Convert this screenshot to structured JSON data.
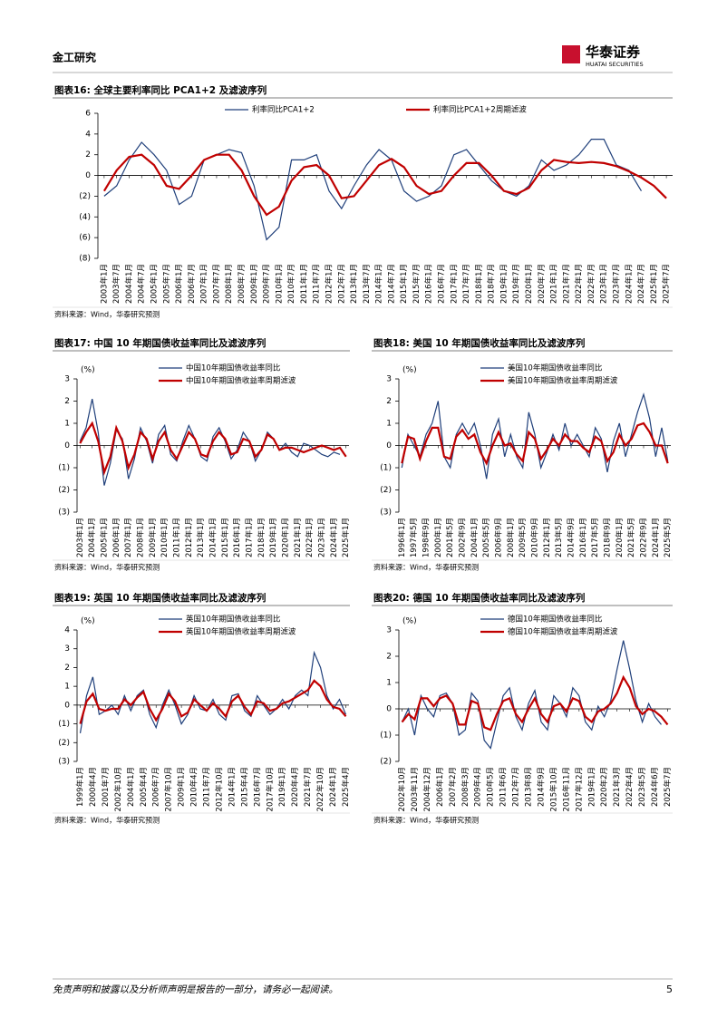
{
  "header": {
    "section": "金工研究",
    "logo_cn": "华泰证券",
    "logo_en": "HUATAI SECURITIES"
  },
  "chart_data": [
    {
      "type": "line",
      "title": "图表16:  全球主要利率同比 PCA1+2 及滤波序列",
      "source": "资料来源：Wind，华泰研究预测",
      "categories": [
        "2003年1月",
        "2003年7月",
        "2004年1月",
        "2004年7月",
        "2005年1月",
        "2005年7月",
        "2006年1月",
        "2006年7月",
        "2007年1月",
        "2007年7月",
        "2008年1月",
        "2008年7月",
        "2009年1月",
        "2009年7月",
        "2010年1月",
        "2010年7月",
        "2011年1月",
        "2011年7月",
        "2012年1月",
        "2012年7月",
        "2013年1月",
        "2013年7月",
        "2014年1月",
        "2014年7月",
        "2015年1月",
        "2015年7月",
        "2016年1月",
        "2016年7月",
        "2017年1月",
        "2017年7月",
        "2018年1月",
        "2018年7月",
        "2019年1月",
        "2019年7月",
        "2020年1月",
        "2020年7月",
        "2021年1月",
        "2021年7月",
        "2022年1月",
        "2022年7月",
        "2023年1月",
        "2023年7月",
        "2024年1月",
        "2024年7月",
        "2025年1月",
        "2025年7月"
      ],
      "series": [
        {
          "name": "利率同比PCA1+2",
          "color": "#1f3f7a",
          "values": [
            -2,
            -1,
            1.5,
            3.2,
            2,
            0.5,
            -2.8,
            -2,
            1.5,
            2,
            2.5,
            2.2,
            -1,
            -6.2,
            -5,
            1.5,
            1.5,
            2,
            -1.5,
            -3.2,
            -1,
            1,
            2.5,
            1.5,
            -1.5,
            -2.5,
            -2,
            -1,
            2,
            2.5,
            1,
            -0.5,
            -1.5,
            -2,
            -1,
            1.5,
            0.5,
            1,
            2,
            3.5,
            3.5,
            1,
            0.5,
            -1.5,
            null,
            null
          ]
        },
        {
          "name": "利率同比PCA1+2周期滤波",
          "color": "#c00000",
          "values": [
            -1.5,
            0.5,
            1.8,
            2,
            1,
            -1,
            -1.3,
            0,
            1.5,
            2,
            2,
            0.5,
            -2,
            -3.8,
            -3,
            -0.5,
            0.8,
            1,
            0,
            -2.2,
            -2,
            -0.5,
            1,
            1.6,
            0.8,
            -1,
            -1.8,
            -1.5,
            0,
            1.2,
            1.2,
            0,
            -1.5,
            -1.8,
            -1.2,
            0.5,
            1.5,
            1.3,
            1.2,
            1.3,
            1.2,
            0.9,
            0.4,
            -0.2,
            -1,
            -2.2
          ]
        }
      ],
      "ylim": [
        -8,
        6
      ],
      "yticks": [
        {
          "value": -8,
          "label": "(8)"
        },
        {
          "value": -6,
          "label": "(6)"
        },
        {
          "value": -4,
          "label": "(4)"
        },
        {
          "value": -2,
          "label": "(2)"
        },
        0,
        2,
        4,
        6
      ]
    },
    {
      "type": "line",
      "title": "图表17:  中国 10 年期国债收益率同比及滤波序列",
      "source": "资料来源：Wind，华泰研究预测",
      "unit": "(%)",
      "categories": [
        "2003年1月",
        null,
        "2004年1月",
        null,
        "2005年1月",
        null,
        "2006年1月",
        null,
        "2007年1月",
        null,
        "2008年1月",
        null,
        "2009年1月",
        null,
        "2010年1月",
        null,
        "2011年1月",
        null,
        "2012年1月",
        null,
        "2013年1月",
        null,
        "2014年1月",
        null,
        "2015年1月",
        null,
        "2016年1月",
        null,
        "2017年1月",
        null,
        "2018年1月",
        null,
        "2019年1月",
        null,
        "2020年1月",
        null,
        "2021年1月",
        null,
        "2022年1月",
        null,
        "2023年1月",
        null,
        "2024年1月",
        null,
        "2025年1月"
      ],
      "series": [
        {
          "name": "中国10年期国债收益率同比",
          "color": "#1f3f7a",
          "values": [
            0.2,
            0.8,
            2.1,
            0.6,
            -1.8,
            -0.8,
            0.7,
            0.3,
            -1.5,
            -0.6,
            0.8,
            0.2,
            -0.8,
            0.5,
            0.9,
            -0.4,
            -0.7,
            0.2,
            0.9,
            0.3,
            -0.5,
            -0.7,
            0.4,
            0.8,
            0.2,
            -0.6,
            -0.2,
            0.6,
            0.2,
            -0.7,
            -0.2,
            0.6,
            0.3,
            -0.2,
            0.1,
            -0.3,
            -0.5,
            0.1,
            0,
            -0.2,
            -0.4,
            -0.5,
            -0.3,
            -0.4,
            null
          ]
        },
        {
          "name": "中国10年期国债收益率周期滤波",
          "color": "#c00000",
          "values": [
            0.1,
            0.6,
            1,
            0.2,
            -1.2,
            -0.5,
            0.8,
            0.2,
            -1,
            -0.4,
            0.6,
            0.3,
            -0.6,
            0.2,
            0.6,
            -0.2,
            -0.6,
            0,
            0.6,
            0.3,
            -0.4,
            -0.5,
            0.2,
            0.6,
            0.3,
            -0.4,
            -0.3,
            0.3,
            0.2,
            -0.5,
            -0.2,
            0.5,
            0.3,
            -0.2,
            -0.1,
            -0.1,
            -0.2,
            -0.3,
            -0.2,
            -0.1,
            0,
            -0.1,
            -0.2,
            -0.1,
            -0.5
          ]
        }
      ],
      "ylim": [
        -3,
        3
      ],
      "yticks": [
        {
          "value": -3,
          "label": "(3)"
        },
        {
          "value": -2,
          "label": "(2)"
        },
        {
          "value": -1,
          "label": "(1)"
        },
        0,
        1,
        2,
        3
      ]
    },
    {
      "type": "line",
      "title": "图表18:  美国 10 年期国债收益率同比及滤波序列",
      "source": "资料来源：Wind，华泰研究预测",
      "unit": "(%)",
      "categories": [
        "1996年1月",
        null,
        "1997年5月",
        null,
        "1998年9月",
        null,
        "2000年1月",
        null,
        "2001年5月",
        null,
        "2002年9月",
        null,
        "2004年1月",
        null,
        "2005年5月",
        null,
        "2006年9月",
        null,
        "2008年1月",
        null,
        "2009年5月",
        null,
        "2010年9月",
        null,
        "2012年1月",
        null,
        "2013年5月",
        null,
        "2014年9月",
        null,
        "2016年1月",
        null,
        "2017年5月",
        null,
        "2018年9月",
        null,
        "2020年1月",
        null,
        "2021年5月",
        null,
        "2022年9月",
        null,
        "2024年1月",
        null,
        "2025年5月"
      ],
      "series": [
        {
          "name": "美国10年期国债收益率同比",
          "color": "#1f3f7a",
          "values": [
            -1,
            0.5,
            0,
            -0.5,
            0.5,
            1,
            2,
            -0.5,
            -1,
            0.5,
            1,
            0.5,
            1,
            0,
            -1.5,
            0.5,
            1.2,
            -0.5,
            0.5,
            -0.5,
            -1,
            1.5,
            0.5,
            -1,
            -0.3,
            0.5,
            -0.2,
            1,
            0,
            0.5,
            0,
            -0.5,
            0.8,
            0.3,
            -1.2,
            0.2,
            1,
            -0.5,
            0.5,
            1.5,
            2.3,
            1.2,
            -0.5,
            0.8,
            -0.7
          ]
        },
        {
          "name": "美国10年期国债收益率周期滤波",
          "color": "#c00000",
          "values": [
            -0.8,
            0.4,
            0.3,
            -0.6,
            0.2,
            0.8,
            0.8,
            -0.5,
            -0.6,
            0.4,
            0.7,
            0.3,
            0.5,
            -0.3,
            -0.8,
            0,
            0.6,
            0,
            0.1,
            -0.4,
            -0.7,
            0.6,
            0.3,
            -0.6,
            -0.2,
            0.3,
            0,
            0.5,
            0.2,
            0.2,
            -0.1,
            -0.3,
            0.4,
            0.2,
            -0.7,
            -0.3,
            0.5,
            0,
            0.3,
            0.9,
            1,
            0.6,
            0,
            0,
            -0.8
          ]
        }
      ],
      "ylim": [
        -3,
        3
      ],
      "yticks": [
        {
          "value": -3,
          "label": "(3)"
        },
        {
          "value": -2,
          "label": "(2)"
        },
        {
          "value": -1,
          "label": "(1)"
        },
        0,
        1,
        2,
        3
      ]
    },
    {
      "type": "line",
      "title": "图表19:  英国 10 年期国债收益率同比及滤波序列",
      "source": "资料来源：Wind，华泰研究预测",
      "unit": "(%)",
      "categories": [
        "1999年1月",
        null,
        "2000年4月",
        null,
        "2001年7月",
        null,
        "2002年10月",
        null,
        "2004年1月",
        null,
        "2005年4月",
        null,
        "2006年7月",
        null,
        "2007年10月",
        null,
        "2009年1月",
        null,
        "2010年4月",
        null,
        "2011年7月",
        null,
        "2012年10月",
        null,
        "2014年1月",
        null,
        "2015年4月",
        null,
        "2016年7月",
        null,
        "2017年10月",
        null,
        "2019年1月",
        null,
        "2020年4月",
        null,
        "2021年7月",
        null,
        "2022年10月",
        null,
        "2024年1月",
        null,
        "2025年4月"
      ],
      "series": [
        {
          "name": "英国10年期国债收益率同比",
          "color": "#1f3f7a",
          "values": [
            -1.5,
            0.5,
            1.5,
            -0.5,
            -0.3,
            0,
            -0.5,
            0.5,
            -0.3,
            0.5,
            0.8,
            -0.5,
            -1.2,
            0,
            0.8,
            0,
            -1,
            -0.5,
            0.5,
            -0.2,
            -0.3,
            0.3,
            -0.5,
            -0.8,
            0.5,
            0.6,
            -0.3,
            -0.6,
            0.5,
            0,
            -0.5,
            -0.2,
            0.3,
            -0.2,
            0.5,
            0.8,
            0.5,
            2.8,
            2,
            0.5,
            -0.2,
            0.3,
            -0.5
          ]
        },
        {
          "name": "英国10年期国债收益率周期滤波",
          "color": "#c00000",
          "values": [
            -1,
            0.2,
            0.6,
            -0.2,
            -0.3,
            -0.2,
            -0.2,
            0.3,
            0,
            0.4,
            0.7,
            -0.2,
            -0.8,
            -0.2,
            0.6,
            0.2,
            -0.6,
            -0.4,
            0.3,
            0,
            -0.3,
            0.1,
            -0.2,
            -0.6,
            0.2,
            0.5,
            -0.1,
            -0.5,
            0.2,
            0.1,
            -0.3,
            -0.2,
            0.1,
            0.2,
            0.4,
            0.6,
            0.8,
            1.3,
            1,
            0.3,
            -0.1,
            -0.2,
            -0.6
          ]
        }
      ],
      "ylim": [
        -3,
        4
      ],
      "yticks": [
        {
          "value": -3,
          "label": "(3)"
        },
        {
          "value": -2,
          "label": "(2)"
        },
        {
          "value": -1,
          "label": "(1)"
        },
        0,
        1,
        2,
        3,
        4
      ]
    },
    {
      "type": "line",
      "title": "图表20:  德国 10 年期国债收益率同比及滤波序列",
      "source": "资料来源：Wind，华泰研究预测",
      "unit": "(%)",
      "categories": [
        "2002年10月",
        null,
        "2003年11月",
        null,
        "2004年12月",
        null,
        "2006年1月",
        null,
        "2007年2月",
        null,
        "2008年3月",
        null,
        "2009年4月",
        null,
        "2010年5月",
        null,
        "2011年6月",
        null,
        "2012年7月",
        null,
        "2013年8月",
        null,
        "2014年9月",
        null,
        "2015年10月",
        null,
        "2016年11月",
        null,
        "2017年12月",
        null,
        "2019年1月",
        null,
        "2020年2月",
        null,
        "2021年3月",
        null,
        "2022年4月",
        null,
        "2023年5月",
        null,
        "2024年6月",
        null,
        "2025年7月"
      ],
      "series": [
        {
          "name": "德国10年期国债收益率同比",
          "color": "#1f3f7a",
          "values": [
            -0.5,
            0,
            -1,
            0.5,
            0,
            -0.3,
            0.5,
            0.6,
            0.2,
            -1,
            -0.8,
            0.6,
            0.3,
            -1.2,
            -1.5,
            -0.5,
            0.5,
            0.8,
            -0.3,
            -0.8,
            0.2,
            0.7,
            -0.5,
            -0.8,
            0.5,
            0.2,
            -0.3,
            0.8,
            0.5,
            -0.5,
            -0.8,
            0.1,
            -0.3,
            0.3,
            1.5,
            2.6,
            1.5,
            0.3,
            -0.5,
            0.2,
            -0.3,
            -0.6,
            null
          ]
        },
        {
          "name": "德国10年期国债收益率周期滤波",
          "color": "#c00000",
          "values": [
            -0.5,
            -0.2,
            -0.4,
            0.4,
            0.4,
            0.1,
            0.4,
            0.5,
            0.2,
            -0.6,
            -0.6,
            0.3,
            0.2,
            -0.7,
            -0.8,
            -0.2,
            0.3,
            0.4,
            -0.2,
            -0.5,
            0,
            0.4,
            -0.2,
            -0.5,
            0.1,
            0.2,
            -0.1,
            0.4,
            0.3,
            -0.3,
            -0.5,
            -0.1,
            0,
            0.2,
            0.6,
            1.2,
            0.8,
            0.1,
            -0.2,
            0,
            -0.1,
            -0.3,
            -0.6
          ]
        }
      ],
      "ylim": [
        -2,
        3
      ],
      "yticks": [
        {
          "value": -2,
          "label": "(2)"
        },
        {
          "value": -1,
          "label": "(1)"
        },
        0,
        1,
        2,
        3
      ]
    }
  ],
  "footer": {
    "disclaimer": "免责声明和披露以及分析师声明是报告的一部分，请务必一起阅读。",
    "page": "5"
  }
}
